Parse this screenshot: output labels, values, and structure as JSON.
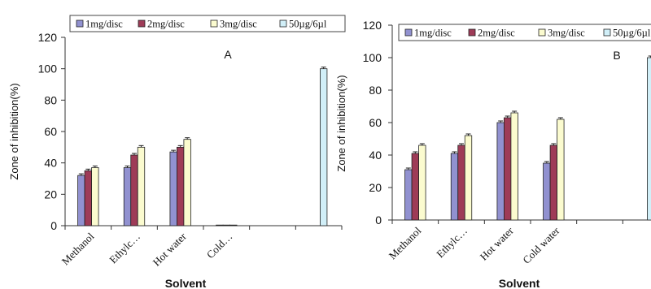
{
  "colors": {
    "s1": "#9191d0",
    "s2": "#9e3b57",
    "s3": "#fbfbcf",
    "s4": "#d1eff8",
    "stroke": "#222222"
  },
  "chart_data": [
    {
      "type": "bar",
      "panel_label": "A",
      "xlabel": "Solvent",
      "ylabel": "Zone of inhibition(%)",
      "ylim": [
        0,
        120
      ],
      "yticks": [
        0,
        20,
        40,
        60,
        80,
        100,
        120
      ],
      "categories": [
        "Methanol",
        "Ethylc…",
        "Hot water",
        "Cold…",
        "",
        ""
      ],
      "series": [
        {
          "name": "1mg/disc",
          "values": [
            32,
            37,
            47,
            0,
            null,
            null
          ]
        },
        {
          "name": "2mg/disc",
          "values": [
            35,
            45,
            50,
            0,
            null,
            null
          ]
        },
        {
          "name": "3mg/disc",
          "values": [
            37,
            50,
            55,
            0,
            null,
            null
          ]
        },
        {
          "name": "50µg/6µl",
          "values": [
            null,
            null,
            null,
            null,
            null,
            100
          ]
        }
      ],
      "grid": false,
      "legend": "top"
    },
    {
      "type": "bar",
      "panel_label": "B",
      "xlabel": "Solvent",
      "ylabel": "Zone of inhibition(%)",
      "ylim": [
        0,
        120
      ],
      "yticks": [
        0,
        20,
        40,
        60,
        80,
        100,
        120
      ],
      "categories": [
        "Methanol",
        "Ethylc…",
        "Hot water",
        "Cold water",
        "",
        ""
      ],
      "series": [
        {
          "name": "1mg/disc",
          "values": [
            31,
            41,
            60,
            35,
            null,
            null
          ]
        },
        {
          "name": "2mg/disc",
          "values": [
            41,
            46,
            63,
            46,
            null,
            null
          ]
        },
        {
          "name": "3mg/disc",
          "values": [
            46,
            52,
            66,
            62,
            null,
            null
          ]
        },
        {
          "name": "50µg/6µl",
          "values": [
            null,
            null,
            null,
            null,
            null,
            100
          ]
        }
      ],
      "grid": false,
      "legend": "top"
    }
  ]
}
